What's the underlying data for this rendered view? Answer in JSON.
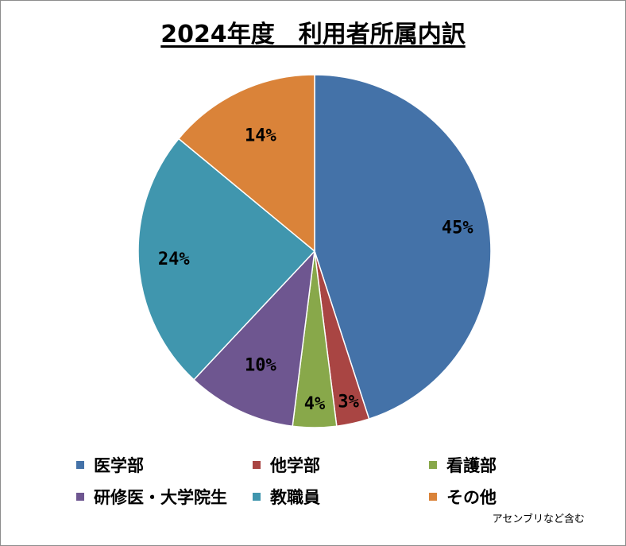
{
  "chart_data": {
    "type": "pie",
    "title": "2024年度　利用者所属内訳",
    "categories": [
      "医学部",
      "他学部",
      "看護部",
      "研修医・大学院生",
      "教職員",
      "その他"
    ],
    "values": [
      45,
      3,
      4,
      10,
      24,
      14
    ],
    "labels": [
      "45%",
      "3%",
      "4%",
      "10%",
      "24%",
      "14%"
    ],
    "colors": [
      "#4472A8",
      "#A94543",
      "#88A84A",
      "#6E5690",
      "#4096AE",
      "#DA8339"
    ],
    "start": "12 o'clock, clockwise",
    "legend_position": "bottom",
    "note": "アセンブリなど含む"
  }
}
